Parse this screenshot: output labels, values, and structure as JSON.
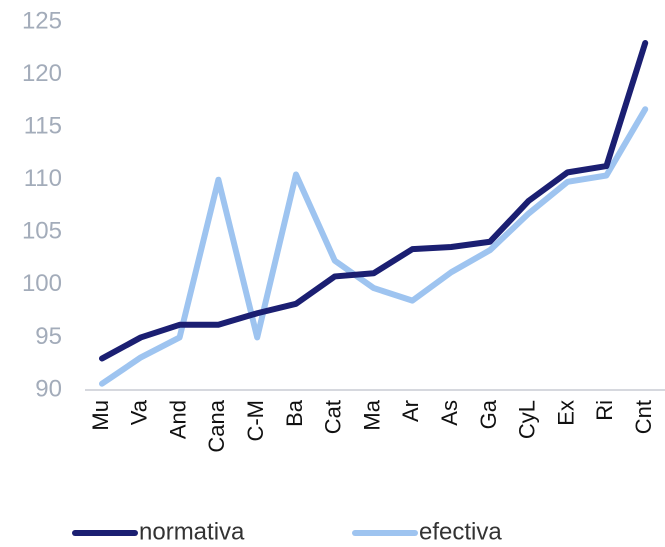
{
  "chart_data": {
    "type": "line",
    "categories": [
      "Mu",
      "Va",
      "And",
      "Cana",
      "C-M",
      "Ba",
      "Cat",
      "Ma",
      "Ar",
      "As",
      "Ga",
      "CyL",
      "Ex",
      "Ri",
      "Cnt"
    ],
    "series": [
      {
        "name": "normativa",
        "color": "#1b1f72",
        "values": [
          93.0,
          95.0,
          96.2,
          96.2,
          97.3,
          98.2,
          100.8,
          101.1,
          103.4,
          103.6,
          104.1,
          108.0,
          110.7,
          111.3,
          123.0
        ]
      },
      {
        "name": "efectiva",
        "color": "#9ec4f0",
        "values": [
          90.6,
          93.1,
          95.0,
          110.0,
          95.0,
          110.5,
          102.3,
          99.7,
          98.5,
          101.2,
          103.3,
          106.8,
          109.8,
          110.4,
          116.7
        ]
      }
    ],
    "ylim": [
      90,
      125
    ],
    "yticks": [
      90,
      95,
      100,
      105,
      110,
      115,
      120,
      125
    ],
    "legend": "bottom"
  }
}
